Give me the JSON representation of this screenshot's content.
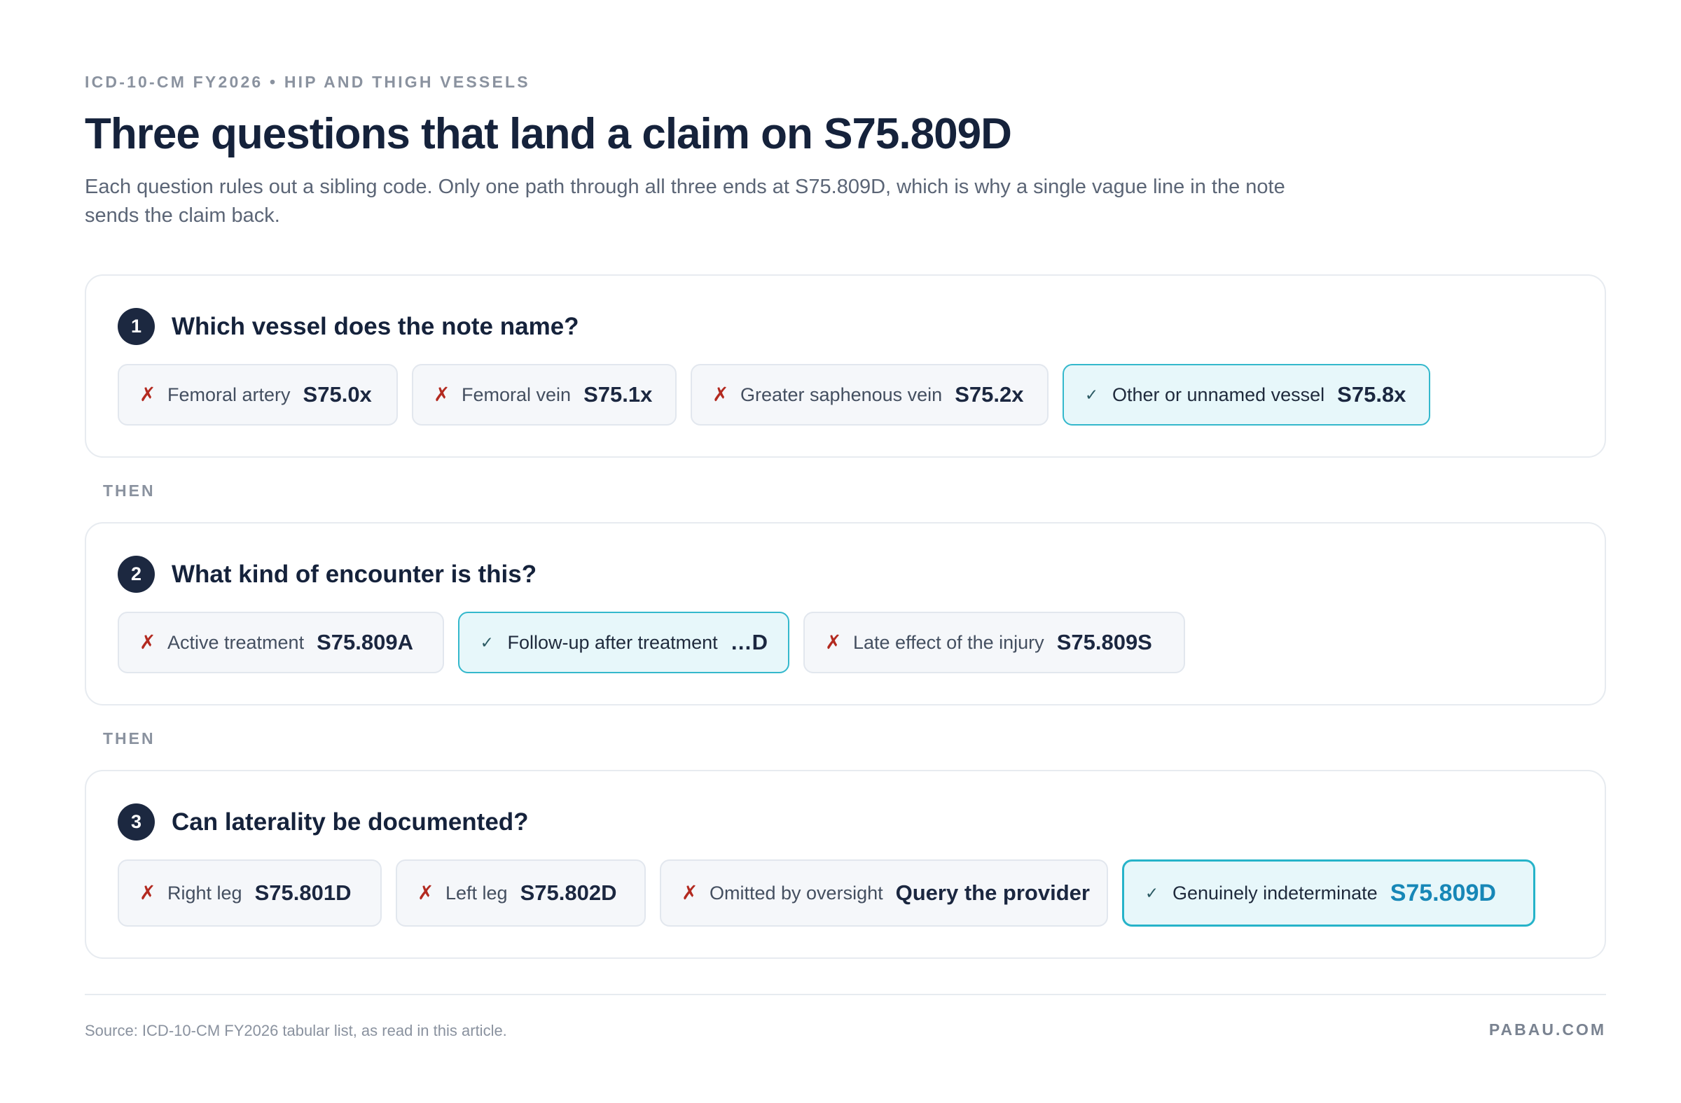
{
  "header": {
    "eyebrow": "ICD-10-CM FY2026 • HIP AND THIGH VESSELS",
    "title": "Three questions that land a claim on S75.809D",
    "subtitle": "Each question rules out a sibling code. Only one path through all three ends at S75.809D, which is why a single vague line in the note sends the claim back."
  },
  "connector_label": "THEN",
  "steps": [
    {
      "number": "1",
      "question": "Which vessel does the note name?",
      "options": [
        {
          "mark": "✗",
          "label": "Femoral artery",
          "code": "S75.0x",
          "selected": false
        },
        {
          "mark": "✗",
          "label": "Femoral vein",
          "code": "S75.1x",
          "selected": false
        },
        {
          "mark": "✗",
          "label": "Greater saphenous vein",
          "code": "S75.2x",
          "selected": false
        },
        {
          "mark": "✓",
          "label": "Other or unnamed vessel",
          "code": "S75.8x",
          "selected": true
        }
      ]
    },
    {
      "number": "2",
      "question": "What kind of encounter is this?",
      "options": [
        {
          "mark": "✗",
          "label": "Active treatment",
          "code": "S75.809A",
          "selected": false
        },
        {
          "mark": "✓",
          "label": "Follow-up after treatment",
          "code": "…D",
          "selected": true
        },
        {
          "mark": "✗",
          "label": "Late effect of the injury",
          "code": "S75.809S",
          "selected": false
        }
      ]
    },
    {
      "number": "3",
      "question": "Can laterality be documented?",
      "options": [
        {
          "mark": "✗",
          "label": "Right leg",
          "code": "S75.801D",
          "selected": false
        },
        {
          "mark": "✗",
          "label": "Left leg",
          "code": "S75.802D",
          "selected": false
        },
        {
          "mark": "✗",
          "label": "Omitted by oversight",
          "code": "Query the provider",
          "selected": false
        },
        {
          "mark": "✓",
          "label": "Genuinely indeterminate",
          "code": "S75.809D",
          "selected": true
        }
      ]
    }
  ],
  "footer": {
    "source": "Source: ICD-10-CM FY2026 tabular list, as read in this article.",
    "brand": "PABAU.COM"
  },
  "colors": {
    "heading": "#15223b",
    "muted": "#8a929f",
    "reject_mark": "#b32a20",
    "selected_border": "#34b8cc",
    "selected_fill": "#e7f7fa",
    "final_code": "#1787b7"
  }
}
